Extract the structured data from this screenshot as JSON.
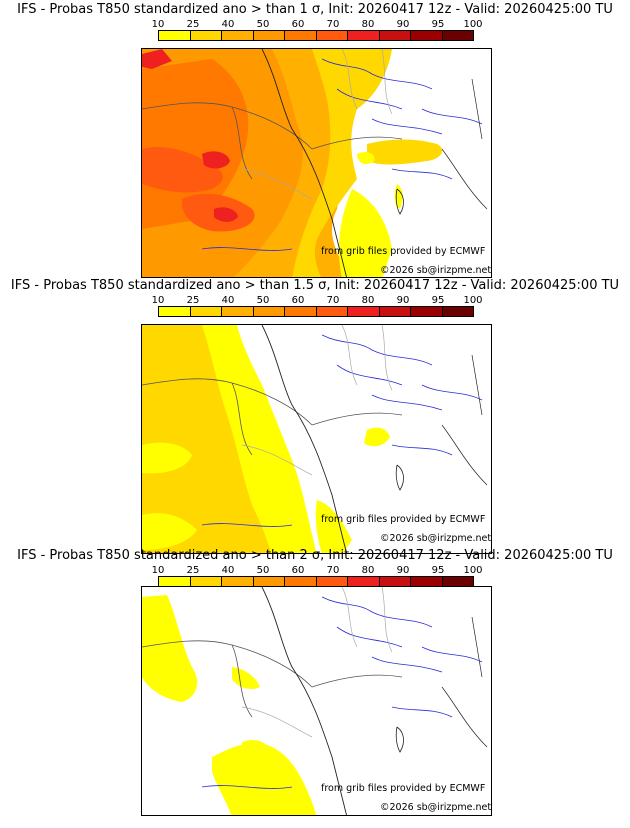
{
  "panels": [
    {
      "title": "IFS - Probas T850  standardized ano > than 1 σ, Init: 20260417 12z - Valid: 20260425:00 TU"
    },
    {
      "title": "IFS - Probas T850  standardized ano > than 1.5 σ, Init: 20260417 12z - Valid: 20260425:00 TU"
    },
    {
      "title": "IFS - Probas T850  standardized ano > than 2 σ, Init: 20260417 12z - Valid: 20260425:00 TU"
    }
  ],
  "scale": {
    "labels": [
      "10",
      "25",
      "40",
      "50",
      "60",
      "70",
      "80",
      "90",
      "95",
      "100"
    ],
    "colors": [
      "#ffff00",
      "#ffd800",
      "#ffb000",
      "#ff9900",
      "#ff7800",
      "#ff5a10",
      "#ee2020",
      "#c81010",
      "#9a0000",
      "#6a0000"
    ]
  },
  "credits": {
    "source": "from grib files provided by ECMWF",
    "copyright": "©2026 sb@irizpme.net"
  }
}
